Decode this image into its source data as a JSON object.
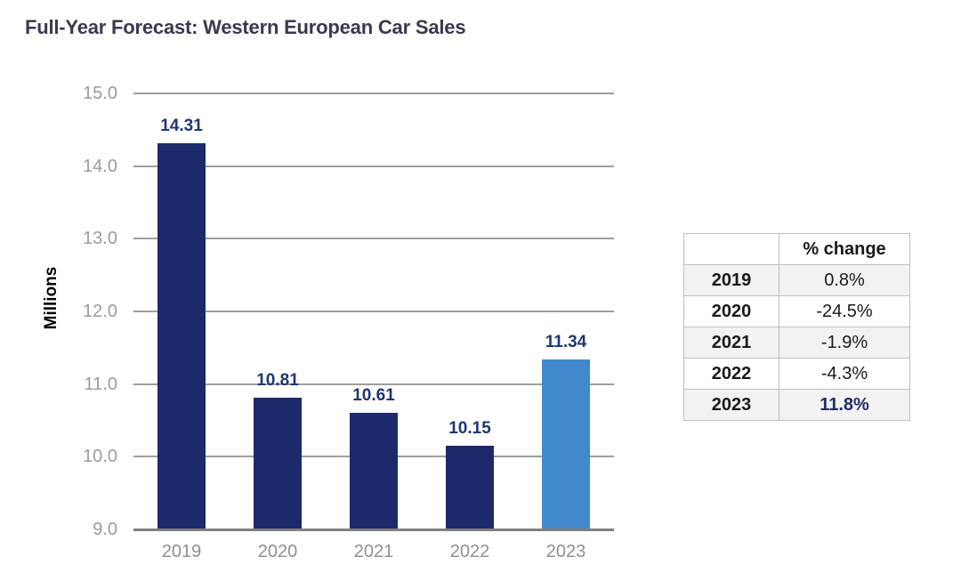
{
  "title": "Full-Year Forecast: Western European Car Sales",
  "chart_data": {
    "type": "bar",
    "title": "Full-Year Forecast: Western European Car Sales",
    "categories": [
      "2019",
      "2020",
      "2021",
      "2022",
      "2023"
    ],
    "values": [
      14.31,
      10.81,
      10.61,
      10.15,
      11.34
    ],
    "data_labels": [
      "14.31",
      "10.81",
      "10.61",
      "10.15",
      "11.34"
    ],
    "xlabel": "",
    "ylabel": "Millions",
    "ylim": [
      9.0,
      15.0
    ],
    "ytick_step": 1.0,
    "ytick_labels": [
      "15.0",
      "14.0",
      "13.0",
      "12.0",
      "11.0",
      "10.0",
      "9.0"
    ],
    "grid": true,
    "legend": "none",
    "bar_color": "#1C2A6B",
    "highlight_color": "#4189CC",
    "highlight_category": "2023",
    "data_label_color": "#1F3575",
    "axis_text_color": "#9B9B9B"
  },
  "table": {
    "header": [
      "",
      "% change"
    ],
    "rows": [
      {
        "year": "2019",
        "change": "0.8%",
        "shaded": true,
        "bold_value": false
      },
      {
        "year": "2020",
        "change": "-24.5%",
        "shaded": false,
        "bold_value": false
      },
      {
        "year": "2021",
        "change": "-1.9%",
        "shaded": true,
        "bold_value": false
      },
      {
        "year": "2022",
        "change": "-4.3%",
        "shaded": false,
        "bold_value": false
      },
      {
        "year": "2023",
        "change": "11.8%",
        "shaded": true,
        "bold_value": true
      }
    ],
    "bold_value_color": "#1F2D69"
  },
  "colors": {
    "title": "#39394F",
    "gridline": "#9E9E9E",
    "baseline": "#7F7F7F",
    "table_border": "#BFBFBF",
    "table_alt_row": "#F2F2F2"
  }
}
